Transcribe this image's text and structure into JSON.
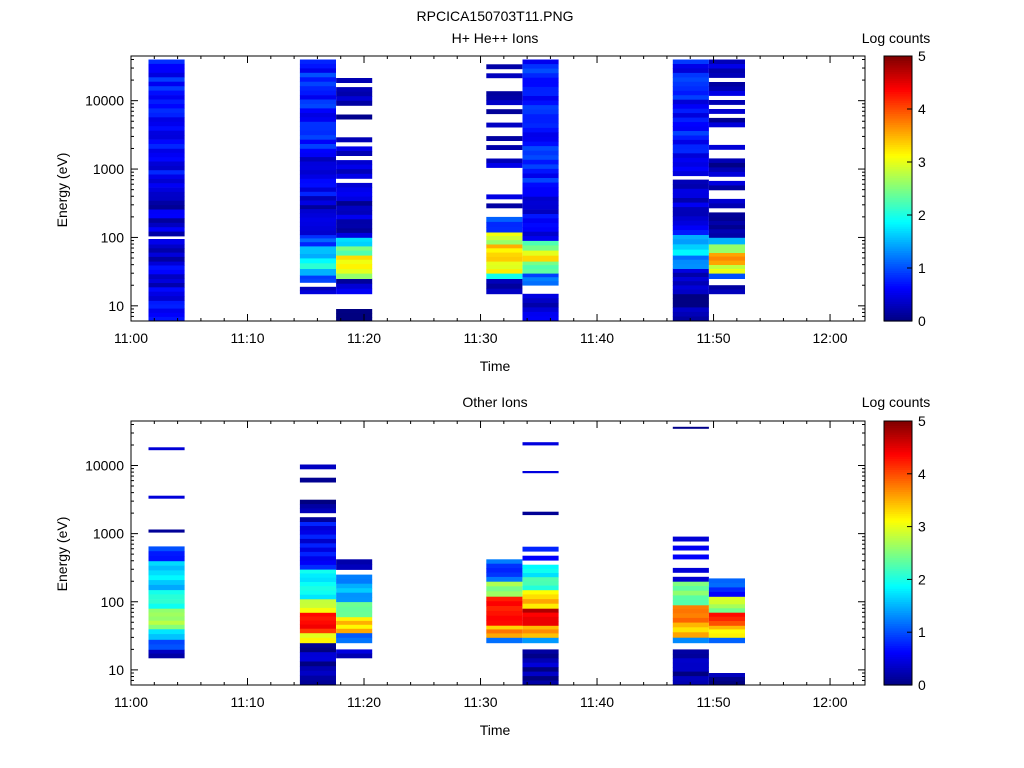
{
  "title": "RPCICA150703T11.PNG",
  "panels": [
    {
      "title": "H+ He++ Ions",
      "ylabel": "Energy (eV)",
      "xlabel": "Time",
      "colorbar_label": "Log counts"
    },
    {
      "title": "Other Ions",
      "ylabel": "Energy (eV)",
      "xlabel": "Time",
      "colorbar_label": "Log counts"
    }
  ],
  "colormap": "jet",
  "chart_data": [
    {
      "type": "heatmap",
      "title": "H+ He++ Ions",
      "xlabel": "Time",
      "ylabel": "Energy (eV)",
      "x_ticks": [
        "11:00",
        "11:10",
        "11:20",
        "11:30",
        "11:40",
        "11:50",
        "12:00"
      ],
      "x_range_minutes": [
        0,
        63
      ],
      "y_scale": "log",
      "y_ticks": [
        10,
        100,
        1000,
        10000
      ],
      "y_range": [
        6,
        45000
      ],
      "colorbar": {
        "label": "Log counts",
        "min": 0,
        "max": 5,
        "ticks": [
          0,
          1,
          2,
          3,
          4,
          5
        ]
      },
      "sweeps": [
        {
          "t0": 1.5,
          "t1": 4.6,
          "segments": [
            {
              "e0": 6,
              "e1": 12,
              "v": 0.75
            },
            {
              "e0": 12,
              "e1": 25,
              "v": 0.45
            },
            {
              "e0": 25,
              "e1": 45,
              "v": 0.55
            },
            {
              "e0": 45,
              "e1": 80,
              "v": 0.35
            },
            {
              "e0": 80,
              "e1": 95,
              "v": 0.5
            },
            {
              "e0": 105,
              "e1": 400,
              "v": 0.35
            },
            {
              "e0": 400,
              "e1": 2000,
              "v": 0.55
            },
            {
              "e0": 2000,
              "e1": 40000,
              "v": 0.7
            }
          ]
        },
        {
          "t0": 14.5,
          "t1": 17.6,
          "segments": [
            {
              "e0": 15,
              "e1": 19,
              "v": 0.2
            },
            {
              "e0": 22,
              "e1": 28,
              "v": 1.0
            },
            {
              "e0": 28,
              "e1": 35,
              "v": 1.5
            },
            {
              "e0": 35,
              "e1": 50,
              "v": 1.9
            },
            {
              "e0": 50,
              "e1": 75,
              "v": 1.6
            },
            {
              "e0": 75,
              "e1": 110,
              "v": 1.0
            },
            {
              "e0": 110,
              "e1": 300,
              "v": 0.25
            },
            {
              "e0": 300,
              "e1": 2000,
              "v": 0.55
            },
            {
              "e0": 2000,
              "e1": 40000,
              "v": 0.75
            }
          ]
        },
        {
          "t0": 17.6,
          "t1": 20.7,
          "segments": [
            {
              "e0": 6,
              "e1": 9,
              "v": 0.2
            },
            {
              "e0": 15,
              "e1": 25,
              "v": 0.4
            },
            {
              "e0": 25,
              "e1": 35,
              "v": 2.8
            },
            {
              "e0": 35,
              "e1": 55,
              "v": 3.3
            },
            {
              "e0": 55,
              "e1": 75,
              "v": 2.5
            },
            {
              "e0": 75,
              "e1": 100,
              "v": 1.8
            },
            {
              "e0": 100,
              "e1": 250,
              "v": 0.4
            },
            {
              "e0": 250,
              "e1": 34000,
              "v": 0.3,
              "gappy": true
            }
          ]
        },
        {
          "t0": 30.5,
          "t1": 33.6,
          "segments": [
            {
              "e0": 15,
              "e1": 25,
              "v": 0.2
            },
            {
              "e0": 25,
              "e1": 30,
              "v": 1.8
            },
            {
              "e0": 30,
              "e1": 45,
              "v": 3.0
            },
            {
              "e0": 45,
              "e1": 80,
              "v": 3.4
            },
            {
              "e0": 80,
              "e1": 120,
              "v": 2.8
            },
            {
              "e0": 120,
              "e1": 200,
              "v": 1.0
            },
            {
              "e0": 200,
              "e1": 34000,
              "v": 0.3,
              "gappy": true
            }
          ]
        },
        {
          "t0": 33.6,
          "t1": 36.7,
          "segments": [
            {
              "e0": 6,
              "e1": 15,
              "v": 0.35
            },
            {
              "e0": 20,
              "e1": 30,
              "v": 1.0
            },
            {
              "e0": 30,
              "e1": 45,
              "v": 2.5
            },
            {
              "e0": 45,
              "e1": 65,
              "v": 3.2
            },
            {
              "e0": 65,
              "e1": 90,
              "v": 2.2
            },
            {
              "e0": 90,
              "e1": 400,
              "v": 0.5
            },
            {
              "e0": 400,
              "e1": 40000,
              "v": 0.75
            }
          ]
        },
        {
          "t0": 46.5,
          "t1": 49.6,
          "segments": [
            {
              "e0": 6,
              "e1": 15,
              "v": 0.1
            },
            {
              "e0": 15,
              "e1": 35,
              "v": 0.45
            },
            {
              "e0": 35,
              "e1": 55,
              "v": 1.3
            },
            {
              "e0": 55,
              "e1": 80,
              "v": 1.8
            },
            {
              "e0": 80,
              "e1": 110,
              "v": 1.4
            },
            {
              "e0": 110,
              "e1": 700,
              "v": 0.5
            },
            {
              "e0": 800,
              "e1": 40000,
              "v": 0.7
            }
          ]
        },
        {
          "t0": 49.6,
          "t1": 52.7,
          "segments": [
            {
              "e0": 15,
              "e1": 20,
              "v": 0.3
            },
            {
              "e0": 25,
              "e1": 30,
              "v": 1.0
            },
            {
              "e0": 30,
              "e1": 40,
              "v": 2.8
            },
            {
              "e0": 40,
              "e1": 60,
              "v": 3.8
            },
            {
              "e0": 60,
              "e1": 80,
              "v": 2.8
            },
            {
              "e0": 80,
              "e1": 100,
              "v": 1.6
            },
            {
              "e0": 100,
              "e1": 200,
              "v": 0.3
            },
            {
              "e0": 200,
              "e1": 40000,
              "v": 0.3,
              "gappy": true
            }
          ]
        }
      ]
    },
    {
      "type": "heatmap",
      "title": "Other Ions",
      "xlabel": "Time",
      "ylabel": "Energy (eV)",
      "x_ticks": [
        "11:00",
        "11:10",
        "11:20",
        "11:30",
        "11:40",
        "11:50",
        "12:00"
      ],
      "x_range_minutes": [
        0,
        63
      ],
      "y_scale": "log",
      "y_ticks": [
        10,
        100,
        1000,
        10000
      ],
      "y_range": [
        6,
        45000
      ],
      "colorbar": {
        "label": "Log counts",
        "min": 0,
        "max": 5,
        "ticks": [
          0,
          1,
          2,
          3,
          4,
          5
        ]
      },
      "sweeps": [
        {
          "t0": 1.5,
          "t1": 4.6,
          "segments": [
            {
              "e0": 15,
              "e1": 20,
              "v": 0.2
            },
            {
              "e0": 20,
              "e1": 28,
              "v": 0.8
            },
            {
              "e0": 28,
              "e1": 40,
              "v": 1.6
            },
            {
              "e0": 40,
              "e1": 80,
              "v": 2.6
            },
            {
              "e0": 80,
              "e1": 150,
              "v": 2.1
            },
            {
              "e0": 150,
              "e1": 400,
              "v": 1.6
            },
            {
              "e0": 400,
              "e1": 650,
              "v": 0.9
            },
            {
              "e0": 1050,
              "e1": 1150,
              "v": 0.2
            },
            {
              "e0": 3300,
              "e1": 3600,
              "v": 0.2
            },
            {
              "e0": 17000,
              "e1": 18500,
              "v": 0.2
            }
          ]
        },
        {
          "t0": 14.5,
          "t1": 17.6,
          "segments": [
            {
              "e0": 6,
              "e1": 25,
              "v": 0.2
            },
            {
              "e0": 25,
              "e1": 35,
              "v": 3.2
            },
            {
              "e0": 35,
              "e1": 70,
              "v": 4.3
            },
            {
              "e0": 70,
              "e1": 110,
              "v": 3.0
            },
            {
              "e0": 110,
              "e1": 300,
              "v": 1.8
            },
            {
              "e0": 300,
              "e1": 1500,
              "v": 0.6
            },
            {
              "e0": 1500,
              "e1": 12000,
              "v": 0.2,
              "gappy": true
            }
          ]
        },
        {
          "t0": 17.6,
          "t1": 20.7,
          "segments": [
            {
              "e0": 15,
              "e1": 20,
              "v": 0.2
            },
            {
              "e0": 25,
              "e1": 35,
              "v": 1.2
            },
            {
              "e0": 35,
              "e1": 60,
              "v": 3.4
            },
            {
              "e0": 60,
              "e1": 100,
              "v": 2.6
            },
            {
              "e0": 100,
              "e1": 250,
              "v": 1.5
            },
            {
              "e0": 250,
              "e1": 420,
              "v": 0.4,
              "gappy": true
            }
          ]
        },
        {
          "t0": 30.5,
          "t1": 33.6,
          "segments": [
            {
              "e0": 25,
              "e1": 30,
              "v": 1.0
            },
            {
              "e0": 30,
              "e1": 45,
              "v": 3.6
            },
            {
              "e0": 45,
              "e1": 120,
              "v": 4.4
            },
            {
              "e0": 120,
              "e1": 200,
              "v": 2.6
            },
            {
              "e0": 200,
              "e1": 420,
              "v": 1.0
            }
          ]
        },
        {
          "t0": 33.6,
          "t1": 36.7,
          "segments": [
            {
              "e0": 6,
              "e1": 20,
              "v": 0.2
            },
            {
              "e0": 25,
              "e1": 30,
              "v": 1.2
            },
            {
              "e0": 30,
              "e1": 45,
              "v": 3.6
            },
            {
              "e0": 45,
              "e1": 80,
              "v": 4.6
            },
            {
              "e0": 80,
              "e1": 150,
              "v": 3.3
            },
            {
              "e0": 150,
              "e1": 350,
              "v": 2.0
            },
            {
              "e0": 350,
              "e1": 750,
              "v": 0.8,
              "gappy": true
            },
            {
              "e0": 1900,
              "e1": 2100,
              "v": 0.2
            },
            {
              "e0": 7800,
              "e1": 8300,
              "v": 0.2
            },
            {
              "e0": 20000,
              "e1": 22000,
              "v": 0.2
            }
          ]
        },
        {
          "t0": 46.5,
          "t1": 49.6,
          "segments": [
            {
              "e0": 6,
              "e1": 20,
              "v": 0.2
            },
            {
              "e0": 25,
              "e1": 30,
              "v": 1.4
            },
            {
              "e0": 30,
              "e1": 50,
              "v": 3.4
            },
            {
              "e0": 50,
              "e1": 90,
              "v": 4.0
            },
            {
              "e0": 90,
              "e1": 200,
              "v": 2.4
            },
            {
              "e0": 200,
              "e1": 1050,
              "v": 0.6,
              "gappy": true
            },
            {
              "e0": 35000,
              "e1": 37000,
              "v": 0.2
            }
          ]
        },
        {
          "t0": 49.6,
          "t1": 52.7,
          "segments": [
            {
              "e0": 6,
              "e1": 9,
              "v": 0.2
            },
            {
              "e0": 25,
              "e1": 30,
              "v": 1.3
            },
            {
              "e0": 30,
              "e1": 45,
              "v": 3.2
            },
            {
              "e0": 45,
              "e1": 70,
              "v": 4.2
            },
            {
              "e0": 70,
              "e1": 120,
              "v": 2.7
            },
            {
              "e0": 120,
              "e1": 220,
              "v": 0.9
            }
          ]
        }
      ]
    }
  ]
}
